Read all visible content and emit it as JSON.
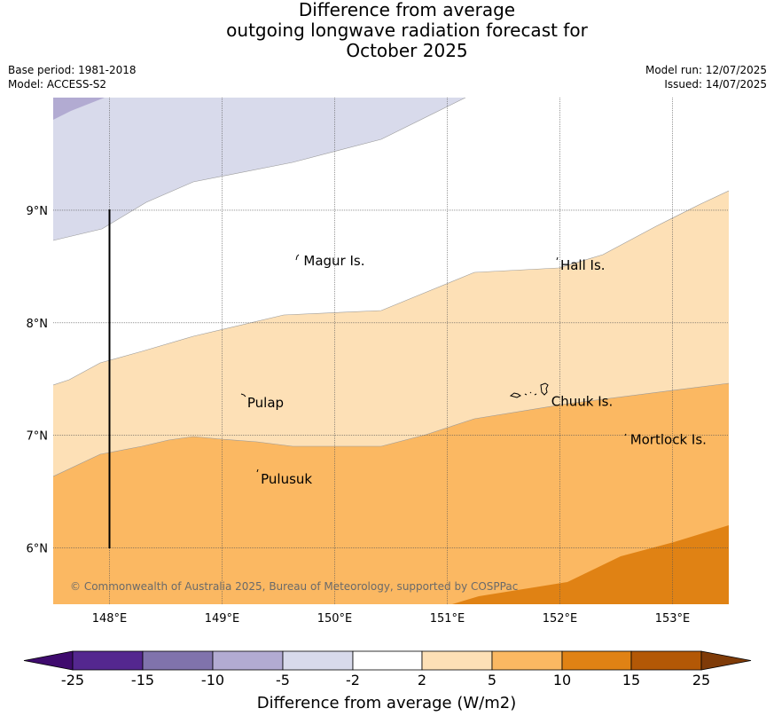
{
  "title": {
    "line1": "Difference from average",
    "line2": "outgoing longwave radiation forecast for",
    "line3": "October 2025"
  },
  "meta": {
    "base_period": "Base period: 1981-2018",
    "model": "Model: ACCESS-S2",
    "model_run": "Model run: 12/07/2025",
    "issued": "Issued: 14/07/2025"
  },
  "map": {
    "lon_range": [
      147.5,
      153.5
    ],
    "lat_range": [
      5.5,
      10.0
    ],
    "lon_ticks": [
      "148°E",
      "149°E",
      "150°E",
      "151°E",
      "152°E",
      "153°E"
    ],
    "lat_ticks": [
      "9°N",
      "8°N",
      "7°N",
      "6°N"
    ],
    "places": [
      {
        "name": "Magur Is.",
        "lon": 149.7,
        "lat": 8.55
      },
      {
        "name": "Hall Is.",
        "lon": 151.98,
        "lat": 8.51
      },
      {
        "name": "Pulap",
        "lon": 149.2,
        "lat": 7.29
      },
      {
        "name": "Chuuk Is.",
        "lon": 151.9,
        "lat": 7.3
      },
      {
        "name": "Mortlock Is.",
        "lon": 152.6,
        "lat": 6.96
      },
      {
        "name": "Pulusuk",
        "lon": 149.32,
        "lat": 6.61
      }
    ],
    "copyright": "© Commonwealth of Australia 2025, Bureau of Meteorology, supported by COSPPac"
  },
  "colorbar": {
    "labels": [
      "-25",
      "-15",
      "-10",
      "-5",
      "-2",
      "2",
      "5",
      "10",
      "15",
      "25"
    ],
    "colors": [
      "#3f0b6e",
      "#54278f",
      "#8073ac",
      "#b2abd2",
      "#d8daeb",
      "#ffffff",
      "#fde0b6",
      "#fbb862",
      "#e08214",
      "#b35806",
      "#7f3b08"
    ],
    "label": "Difference from average (W/m2)"
  }
}
